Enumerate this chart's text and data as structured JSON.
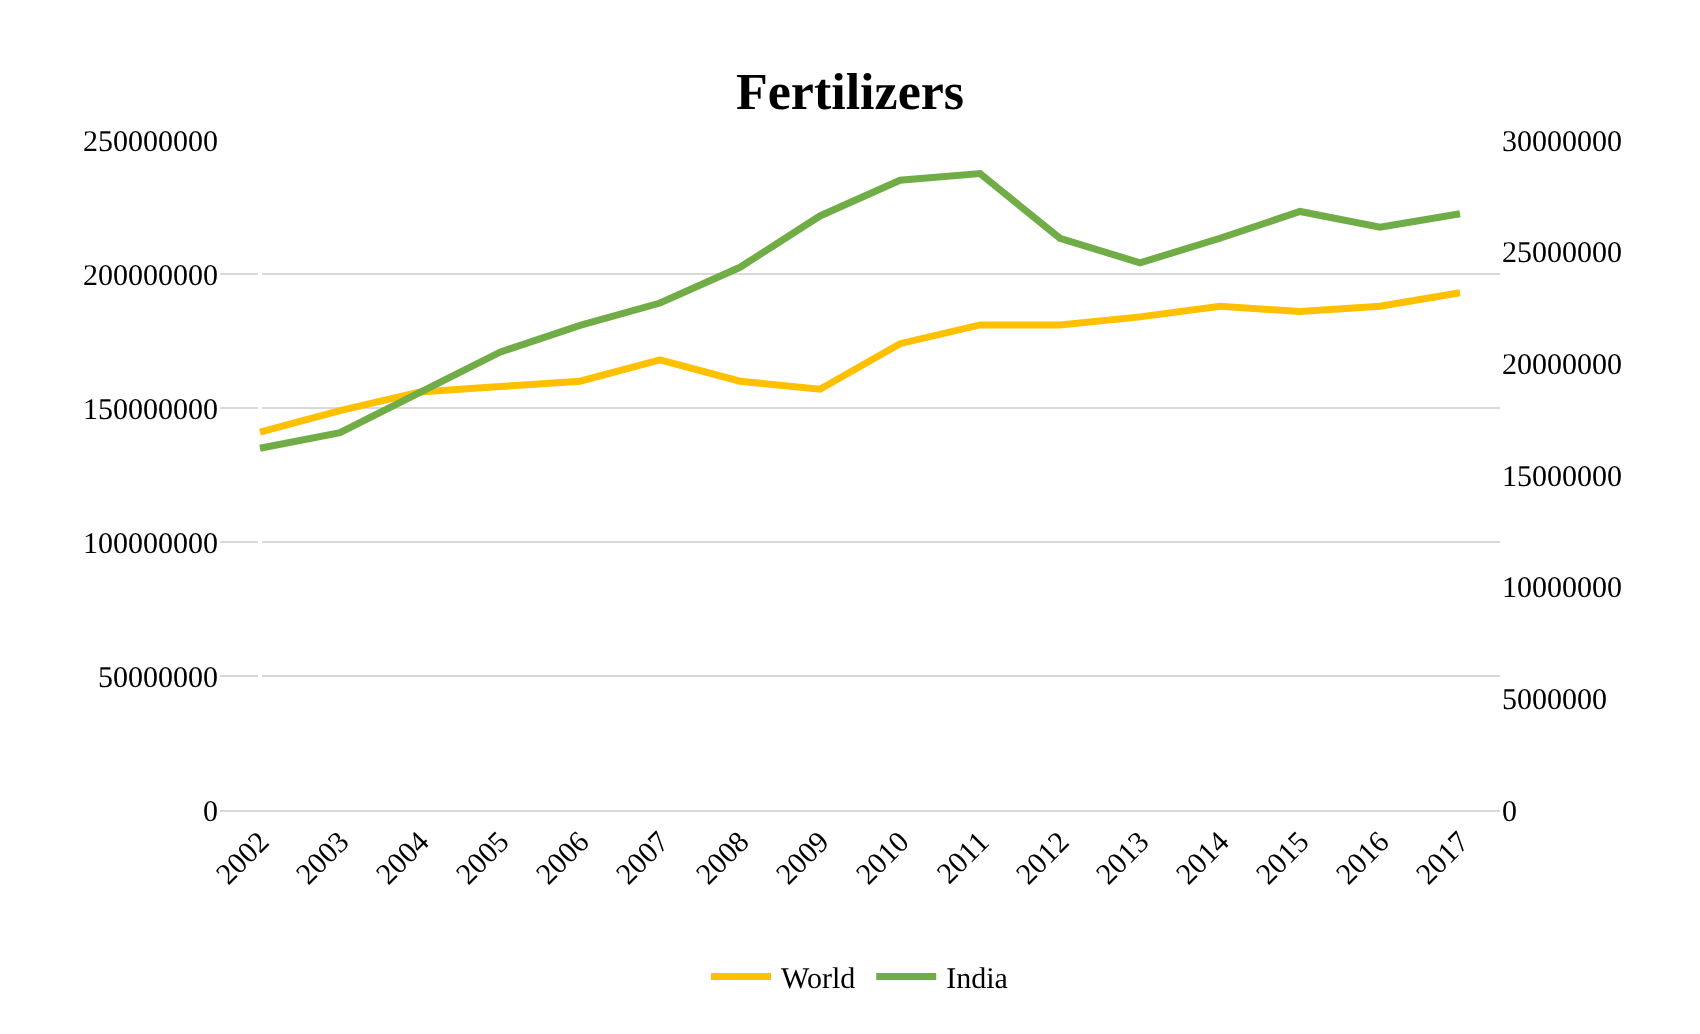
{
  "chart_data": {
    "type": "line",
    "title": "Fertilizers",
    "categories": [
      "2002",
      "2003",
      "2004",
      "2005",
      "2006",
      "2007",
      "2008",
      "2009",
      "2010",
      "2011",
      "2012",
      "2013",
      "2014",
      "2015",
      "2016",
      "2017"
    ],
    "series": [
      {
        "name": "World",
        "color": "#ffc000",
        "values": [
          141000000,
          149000000,
          156000000,
          158000000,
          160000000,
          168000000,
          160000000,
          157000000,
          174000000,
          181000000,
          181000000,
          184000000,
          188000000,
          186000000,
          188000000,
          193000000
        ]
      },
      {
        "name": "India",
        "color": "#70ad47",
        "axis": "y2",
        "values": [
          16200000,
          16900000,
          18700000,
          20500000,
          21700000,
          22700000,
          24300000,
          26600000,
          28200000,
          28500000,
          25600000,
          24500000,
          25600000,
          26800000,
          26100000,
          26700000
        ]
      }
    ],
    "ylim": [
      0,
      250000000
    ],
    "yticks": [
      0,
      50000000,
      100000000,
      150000000,
      200000000,
      250000000
    ],
    "y2lim": [
      0,
      30000000
    ],
    "y2ticks": [
      0,
      5000000,
      10000000,
      15000000,
      20000000,
      25000000,
      30000000
    ],
    "grid": "y",
    "legend": "bottom",
    "marker": "none",
    "line_style": "solid"
  }
}
